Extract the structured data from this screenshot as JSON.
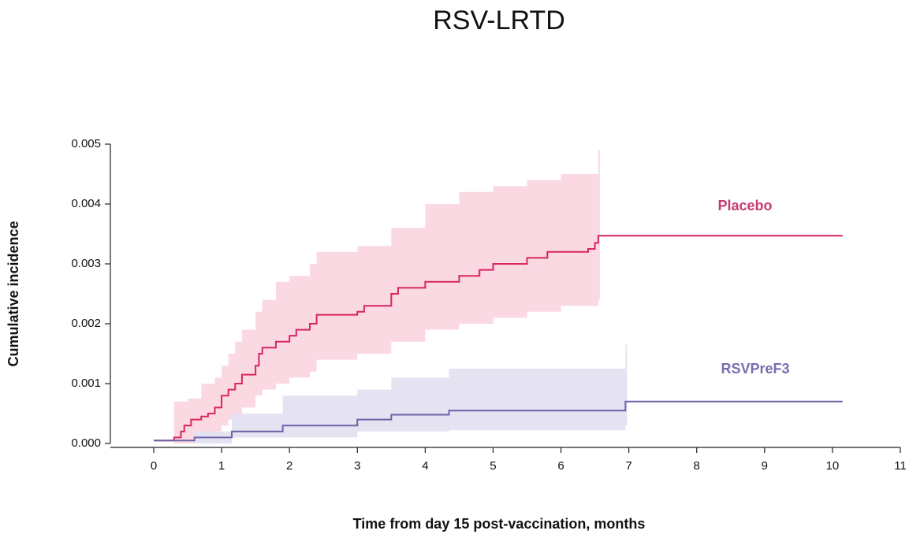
{
  "chart_data": {
    "type": "step",
    "title": "RSV-LRTD",
    "x_label": "Time from day 15 post-vaccination, months",
    "y_label": "Cumulative incidence",
    "xlim": [
      0,
      11
    ],
    "ylim": [
      0,
      0.005
    ],
    "xticks": [
      0,
      1,
      2,
      3,
      4,
      5,
      6,
      7,
      8,
      9,
      10,
      11
    ],
    "yticks": [
      {
        "value": 0,
        "label": "0.000"
      },
      {
        "value": 0.001,
        "label": "0.001"
      },
      {
        "value": 0.002,
        "label": "0.002"
      },
      {
        "value": 0.003,
        "label": "0.003"
      },
      {
        "value": 0.004,
        "label": "0.004"
      },
      {
        "value": 0.005,
        "label": "0.005"
      }
    ],
    "series": [
      {
        "name": "Placebo",
        "color": "#d8265f",
        "band_color": "#fad9e3",
        "label_color": "#c93a72",
        "x": [
          0,
          0.3,
          0.4,
          0.45,
          0.55,
          0.7,
          0.8,
          0.9,
          1.0,
          1.1,
          1.2,
          1.3,
          1.5,
          1.55,
          1.6,
          1.8,
          2.0,
          2.1,
          2.3,
          2.4,
          3.0,
          3.1,
          3.5,
          3.6,
          4.0,
          4.5,
          4.8,
          5.0,
          5.5,
          5.8,
          6.4,
          6.5,
          6.55,
          10.15
        ],
        "values": [
          5e-05,
          0.0001,
          0.0002,
          0.0003,
          0.0004,
          0.00045,
          0.0005,
          0.0006,
          0.0008,
          0.0009,
          0.001,
          0.00115,
          0.0013,
          0.0015,
          0.0016,
          0.0017,
          0.0018,
          0.0019,
          0.002,
          0.00215,
          0.0022,
          0.0023,
          0.0025,
          0.0026,
          0.0027,
          0.0028,
          0.0029,
          0.003,
          0.0031,
          0.0032,
          0.00325,
          0.00335,
          0.00347,
          0.00347
        ],
        "ci_x": [
          0.3,
          0.5,
          0.7,
          0.9,
          1.0,
          1.1,
          1.2,
          1.3,
          1.5,
          1.6,
          1.8,
          2.0,
          2.3,
          2.4,
          2.8,
          3.0,
          3.5,
          4.0,
          4.5,
          5.0,
          5.5,
          6.0,
          6.55
        ],
        "ci_upper": [
          0.0007,
          0.00075,
          0.001,
          0.0011,
          0.0013,
          0.0015,
          0.0017,
          0.0019,
          0.0022,
          0.0024,
          0.0027,
          0.0028,
          0.003,
          0.0032,
          0.0032,
          0.0033,
          0.0036,
          0.004,
          0.0042,
          0.0043,
          0.0044,
          0.0045,
          0.0049
        ],
        "ci_lower": [
          0,
          0,
          0.0001,
          0.0002,
          0.0003,
          0.0004,
          0.0005,
          0.0006,
          0.0008,
          0.0009,
          0.001,
          0.0011,
          0.0012,
          0.0014,
          0.0014,
          0.0015,
          0.0017,
          0.0019,
          0.002,
          0.0021,
          0.0022,
          0.0023,
          0.0024
        ]
      },
      {
        "name": "RSVPreF3",
        "color": "#6d62a8",
        "band_color": "#e5e3f1",
        "label_color": "#7a6cb0",
        "x": [
          0,
          0.6,
          1.15,
          1.9,
          3.0,
          3.5,
          4.35,
          6.95,
          10.15
        ],
        "values": [
          5e-05,
          0.0001,
          0.0002,
          0.0003,
          0.0004,
          0.00048,
          0.00055,
          0.0007,
          0.0007
        ],
        "ci_x": [
          0.6,
          1.15,
          1.9,
          3.0,
          3.5,
          4.35,
          6.95
        ],
        "ci_upper": [
          0.0002,
          0.0005,
          0.0008,
          0.0009,
          0.0011,
          0.00125,
          0.00165
        ],
        "ci_lower": [
          0,
          0.0001,
          0.0001,
          0.0002,
          0.0002,
          0.00022,
          0.0003
        ]
      }
    ]
  }
}
